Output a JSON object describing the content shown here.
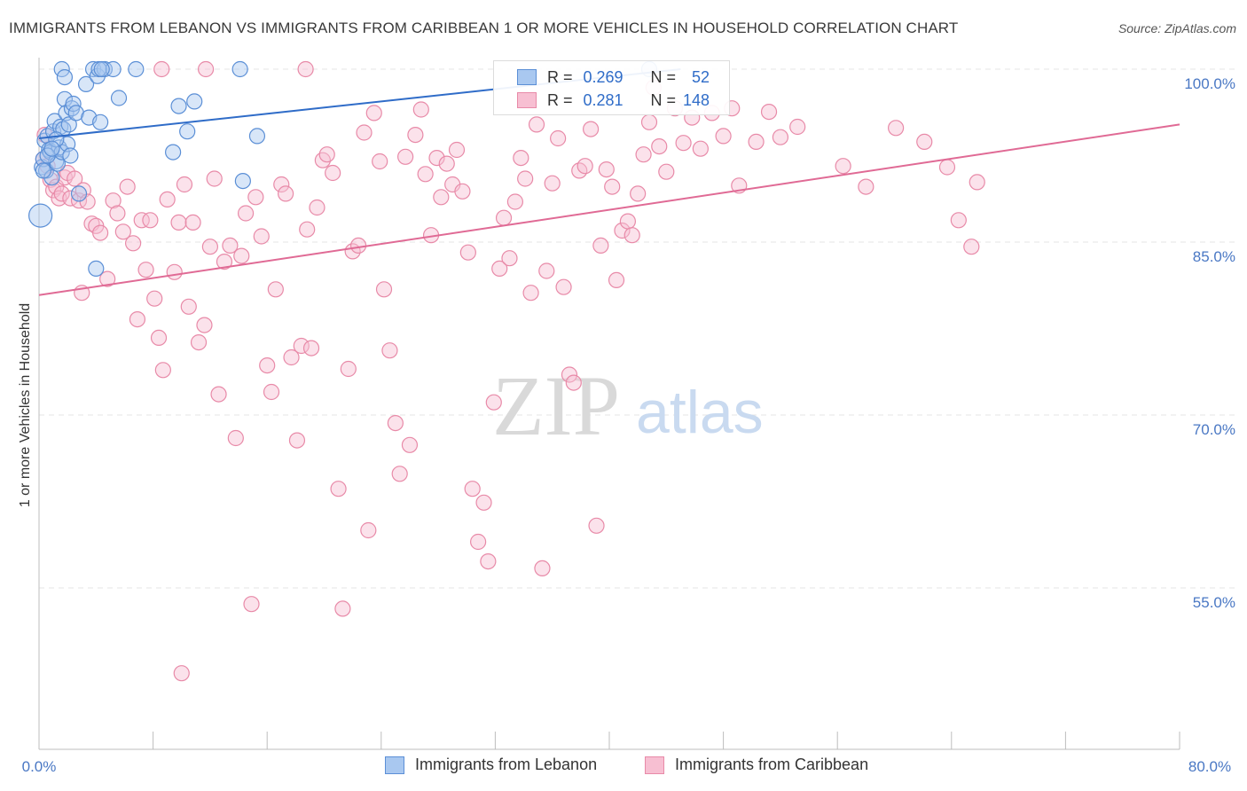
{
  "title": "IMMIGRANTS FROM LEBANON VS IMMIGRANTS FROM CARIBBEAN 1 OR MORE VEHICLES IN HOUSEHOLD CORRELATION CHART",
  "source": "Source: ZipAtlas.com",
  "watermark": {
    "zip": "ZIP",
    "atlas": "atlas"
  },
  "legend": {
    "r_label": "R =",
    "n_label": "N =",
    "series": [
      {
        "name": "Immigrants from Lebanon",
        "r": "0.269",
        "n": "52"
      },
      {
        "name": "Immigrants from Caribbean",
        "r": "0.281",
        "n": "148"
      }
    ]
  },
  "colors": {
    "lebanon_fill": "#a9c8f0",
    "lebanon_stroke": "#5b8fd6",
    "lebanon_line": "#2f6cc8",
    "caribbean_fill": "#f7bfd2",
    "caribbean_stroke": "#e88aa8",
    "caribbean_line": "#e06a95",
    "tick_label": "#4a78c4",
    "grid": "#e4e4e4"
  },
  "chart_data": {
    "type": "scatter",
    "title": "IMMIGRANTS FROM LEBANON VS IMMIGRANTS FROM CARIBBEAN 1 OR MORE VEHICLES IN HOUSEHOLD CORRELATION CHART",
    "xlabel": "",
    "ylabel": "1 or more Vehicles in Household",
    "xlim": [
      0,
      80
    ],
    "ylim": [
      41,
      101
    ],
    "x_tick_labels": [
      "0.0%",
      "80.0%"
    ],
    "y_ticks": [
      55,
      70,
      85,
      100
    ],
    "y_tick_labels": [
      "55.0%",
      "70.0%",
      "85.0%",
      "100.0%"
    ],
    "grid": true,
    "legend_position": "top-center",
    "series": [
      {
        "name": "Immigrants from Lebanon",
        "r": 0.269,
        "n": 52,
        "trend": {
          "x": [
            0,
            45
          ],
          "y": [
            94.0,
            100.0
          ]
        },
        "points": [
          [
            0.1,
            87.3
          ],
          [
            0.2,
            91.5
          ],
          [
            0.3,
            92.2
          ],
          [
            0.4,
            93.8
          ],
          [
            0.5,
            91.2
          ],
          [
            0.6,
            94.2
          ],
          [
            0.7,
            93.0
          ],
          [
            0.8,
            92.8
          ],
          [
            0.9,
            90.6
          ],
          [
            1.0,
            94.6
          ],
          [
            1.1,
            95.5
          ],
          [
            1.2,
            92.0
          ],
          [
            1.3,
            91.8
          ],
          [
            1.4,
            93.2
          ],
          [
            1.5,
            95.0
          ],
          [
            1.6,
            92.8
          ],
          [
            1.7,
            94.8
          ],
          [
            1.8,
            97.4
          ],
          [
            1.9,
            96.2
          ],
          [
            2.0,
            93.5
          ],
          [
            2.1,
            95.2
          ],
          [
            2.2,
            92.5
          ],
          [
            2.3,
            96.6
          ],
          [
            2.4,
            97.0
          ],
          [
            2.6,
            96.2
          ],
          [
            2.8,
            89.2
          ],
          [
            3.3,
            98.7
          ],
          [
            3.5,
            95.8
          ],
          [
            3.8,
            100.0
          ],
          [
            4.1,
            99.4
          ],
          [
            4.3,
            95.4
          ],
          [
            4.6,
            100.0
          ],
          [
            5.2,
            100.0
          ],
          [
            5.6,
            97.5
          ],
          [
            6.8,
            100.0
          ],
          [
            9.4,
            92.8
          ],
          [
            9.8,
            96.8
          ],
          [
            10.4,
            94.6
          ],
          [
            10.9,
            97.2
          ],
          [
            14.1,
            100.0
          ],
          [
            14.3,
            90.3
          ],
          [
            15.3,
            94.2
          ],
          [
            1.6,
            100.0
          ],
          [
            1.8,
            99.3
          ],
          [
            4.2,
            100.0
          ],
          [
            4.4,
            100.0
          ],
          [
            4.0,
            82.7
          ],
          [
            0.6,
            92.5
          ],
          [
            1.2,
            93.9
          ],
          [
            0.9,
            93.1
          ],
          [
            0.3,
            91.2
          ],
          [
            42.8,
            100.0
          ]
        ]
      },
      {
        "name": "Immigrants from Caribbean",
        "r": 0.281,
        "n": 148,
        "trend": {
          "x": [
            0,
            80
          ],
          "y": [
            80.4,
            95.2
          ]
        },
        "points": [
          [
            0.3,
            92.2
          ],
          [
            0.4,
            94.3
          ],
          [
            0.6,
            91.6
          ],
          [
            0.8,
            90.4
          ],
          [
            1.0,
            89.5
          ],
          [
            1.2,
            89.8
          ],
          [
            1.4,
            88.8
          ],
          [
            1.6,
            89.2
          ],
          [
            1.8,
            90.6
          ],
          [
            2.0,
            91.0
          ],
          [
            2.2,
            88.8
          ],
          [
            2.5,
            90.5
          ],
          [
            2.8,
            88.6
          ],
          [
            3.1,
            89.5
          ],
          [
            3.4,
            88.5
          ],
          [
            3.7,
            86.6
          ],
          [
            4.0,
            86.4
          ],
          [
            4.3,
            85.8
          ],
          [
            4.8,
            81.8
          ],
          [
            5.2,
            88.6
          ],
          [
            5.5,
            87.5
          ],
          [
            5.9,
            85.9
          ],
          [
            6.2,
            89.8
          ],
          [
            6.6,
            84.9
          ],
          [
            6.9,
            78.3
          ],
          [
            7.2,
            86.9
          ],
          [
            7.5,
            82.6
          ],
          [
            7.8,
            86.9
          ],
          [
            8.1,
            80.1
          ],
          [
            8.4,
            76.7
          ],
          [
            8.7,
            73.9
          ],
          [
            9.0,
            88.7
          ],
          [
            9.5,
            82.4
          ],
          [
            9.8,
            86.7
          ],
          [
            10.2,
            90.0
          ],
          [
            10.5,
            79.4
          ],
          [
            10.8,
            86.7
          ],
          [
            11.2,
            76.3
          ],
          [
            11.6,
            77.8
          ],
          [
            12.0,
            84.6
          ],
          [
            12.3,
            90.5
          ],
          [
            12.6,
            71.8
          ],
          [
            13.0,
            83.3
          ],
          [
            13.4,
            84.7
          ],
          [
            13.8,
            68.0
          ],
          [
            14.2,
            83.8
          ],
          [
            14.5,
            87.5
          ],
          [
            14.9,
            53.6
          ],
          [
            15.2,
            88.9
          ],
          [
            15.6,
            85.5
          ],
          [
            16.0,
            74.3
          ],
          [
            16.3,
            72.0
          ],
          [
            16.6,
            80.9
          ],
          [
            17.0,
            90.0
          ],
          [
            17.3,
            89.2
          ],
          [
            17.7,
            75.0
          ],
          [
            18.1,
            67.8
          ],
          [
            18.4,
            76.0
          ],
          [
            18.8,
            86.1
          ],
          [
            19.1,
            75.8
          ],
          [
            19.5,
            88.0
          ],
          [
            19.9,
            92.1
          ],
          [
            20.2,
            92.6
          ],
          [
            20.6,
            91.0
          ],
          [
            21.0,
            63.6
          ],
          [
            21.3,
            53.2
          ],
          [
            21.7,
            74.0
          ],
          [
            22.0,
            84.2
          ],
          [
            22.4,
            84.7
          ],
          [
            22.8,
            94.5
          ],
          [
            23.1,
            60.0
          ],
          [
            23.5,
            96.2
          ],
          [
            23.9,
            92.0
          ],
          [
            24.2,
            80.9
          ],
          [
            24.6,
            75.6
          ],
          [
            25.0,
            69.3
          ],
          [
            25.3,
            64.9
          ],
          [
            25.7,
            92.4
          ],
          [
            26.0,
            67.4
          ],
          [
            26.4,
            94.3
          ],
          [
            26.8,
            96.5
          ],
          [
            27.1,
            90.9
          ],
          [
            27.5,
            85.6
          ],
          [
            27.9,
            92.3
          ],
          [
            28.2,
            88.9
          ],
          [
            28.6,
            91.8
          ],
          [
            29.0,
            90.0
          ],
          [
            29.3,
            93.0
          ],
          [
            29.7,
            89.4
          ],
          [
            30.1,
            84.1
          ],
          [
            30.4,
            63.6
          ],
          [
            30.8,
            59.0
          ],
          [
            31.2,
            62.4
          ],
          [
            31.5,
            57.3
          ],
          [
            31.9,
            71.1
          ],
          [
            32.3,
            82.7
          ],
          [
            32.6,
            87.1
          ],
          [
            33.0,
            83.6
          ],
          [
            33.4,
            88.5
          ],
          [
            33.8,
            92.3
          ],
          [
            34.1,
            90.5
          ],
          [
            34.5,
            80.6
          ],
          [
            34.9,
            95.2
          ],
          [
            35.3,
            56.7
          ],
          [
            35.6,
            82.5
          ],
          [
            36.0,
            90.1
          ],
          [
            36.4,
            94.0
          ],
          [
            36.8,
            81.1
          ],
          [
            37.2,
            73.5
          ],
          [
            37.5,
            72.8
          ],
          [
            37.9,
            91.2
          ],
          [
            38.3,
            91.6
          ],
          [
            38.7,
            94.8
          ],
          [
            39.1,
            60.4
          ],
          [
            39.4,
            84.7
          ],
          [
            39.8,
            91.3
          ],
          [
            40.2,
            89.8
          ],
          [
            40.5,
            81.7
          ],
          [
            40.9,
            86.0
          ],
          [
            41.3,
            86.8
          ],
          [
            41.6,
            85.6
          ],
          [
            42.0,
            89.2
          ],
          [
            42.4,
            92.6
          ],
          [
            42.8,
            95.4
          ],
          [
            43.1,
            98.4
          ],
          [
            43.5,
            93.3
          ],
          [
            44.0,
            91.1
          ],
          [
            44.6,
            96.6
          ],
          [
            45.2,
            93.6
          ],
          [
            45.8,
            95.8
          ],
          [
            46.4,
            93.1
          ],
          [
            47.2,
            96.2
          ],
          [
            48.0,
            94.2
          ],
          [
            48.6,
            96.6
          ],
          [
            49.1,
            89.9
          ],
          [
            50.3,
            93.7
          ],
          [
            51.2,
            96.3
          ],
          [
            52.0,
            94.1
          ],
          [
            53.2,
            95.0
          ],
          [
            56.4,
            91.6
          ],
          [
            58.0,
            89.8
          ],
          [
            62.1,
            93.7
          ],
          [
            63.7,
            91.5
          ],
          [
            64.5,
            86.9
          ],
          [
            65.4,
            84.6
          ],
          [
            65.8,
            90.2
          ],
          [
            60.1,
            94.9
          ],
          [
            8.6,
            100.0
          ],
          [
            11.7,
            100.0
          ],
          [
            3.0,
            80.6
          ],
          [
            18.7,
            100.0
          ],
          [
            10.0,
            47.6
          ]
        ]
      }
    ]
  }
}
